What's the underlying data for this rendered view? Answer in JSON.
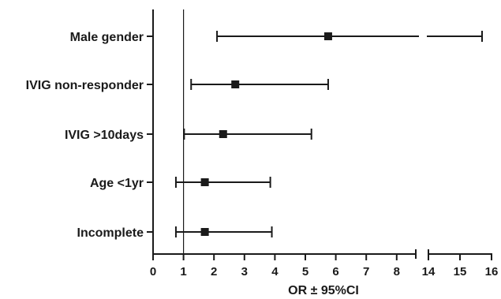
{
  "chart_data": {
    "type": "forest",
    "xlabel": "OR ± 95%CI",
    "reference_line": 1,
    "axis_break": {
      "after": 8.6,
      "resume": 14
    },
    "x_ticks_left": [
      0,
      1,
      2,
      3,
      4,
      5,
      6,
      7,
      8
    ],
    "x_ticks_right": [
      14,
      15,
      16
    ],
    "rows": [
      {
        "label": "Male gender",
        "or": 5.75,
        "lower": 2.1,
        "upper": 15.7
      },
      {
        "label": "IVIG non-responder",
        "or": 2.7,
        "lower": 1.25,
        "upper": 5.75
      },
      {
        "label": "IVIG >10days",
        "or": 2.3,
        "lower": 1.02,
        "upper": 5.2
      },
      {
        "label": "Age <1yr",
        "or": 1.7,
        "lower": 0.75,
        "upper": 3.85
      },
      {
        "label": "Incomplete",
        "or": 1.7,
        "lower": 0.75,
        "upper": 3.9
      }
    ]
  }
}
